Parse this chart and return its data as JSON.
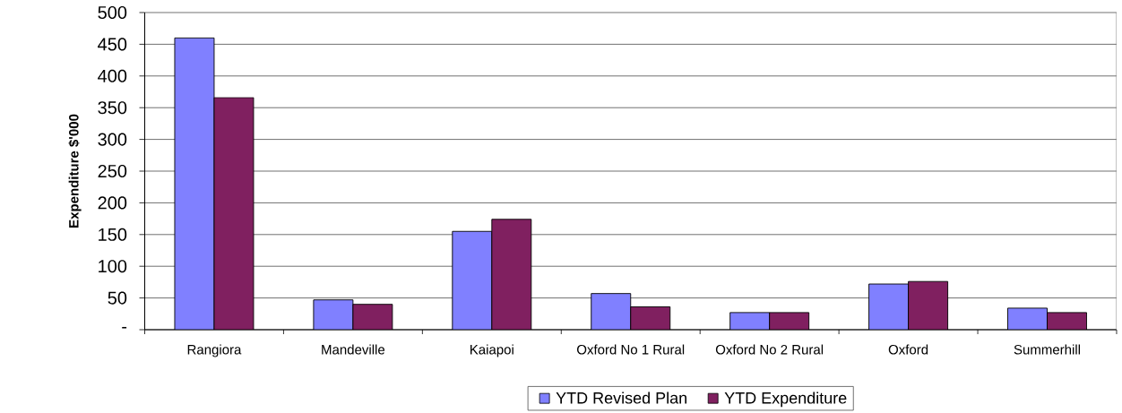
{
  "chart_data": {
    "type": "bar",
    "ylabel": "Expenditure $'000",
    "categories": [
      "Rangiora",
      "Mandeville",
      "Kaiapoi",
      "Oxford No 1 Rural",
      "Oxford No 2 Rural",
      "Oxford",
      "Summerhill"
    ],
    "series": [
      {
        "name": "YTD Revised Plan",
        "color": "#8080ff",
        "values": [
          460,
          47,
          155,
          57,
          27,
          72,
          34
        ]
      },
      {
        "name": "YTD Expenditure",
        "color": "#802060",
        "values": [
          366,
          40,
          174,
          36,
          27,
          76,
          27
        ]
      }
    ],
    "ylim": [
      0,
      500
    ],
    "yticks": [
      {
        "value": 0,
        "label": "-"
      },
      50,
      100,
      150,
      200,
      250,
      300,
      350,
      400,
      450,
      500
    ],
    "grid": "y",
    "legend": "bottom"
  }
}
